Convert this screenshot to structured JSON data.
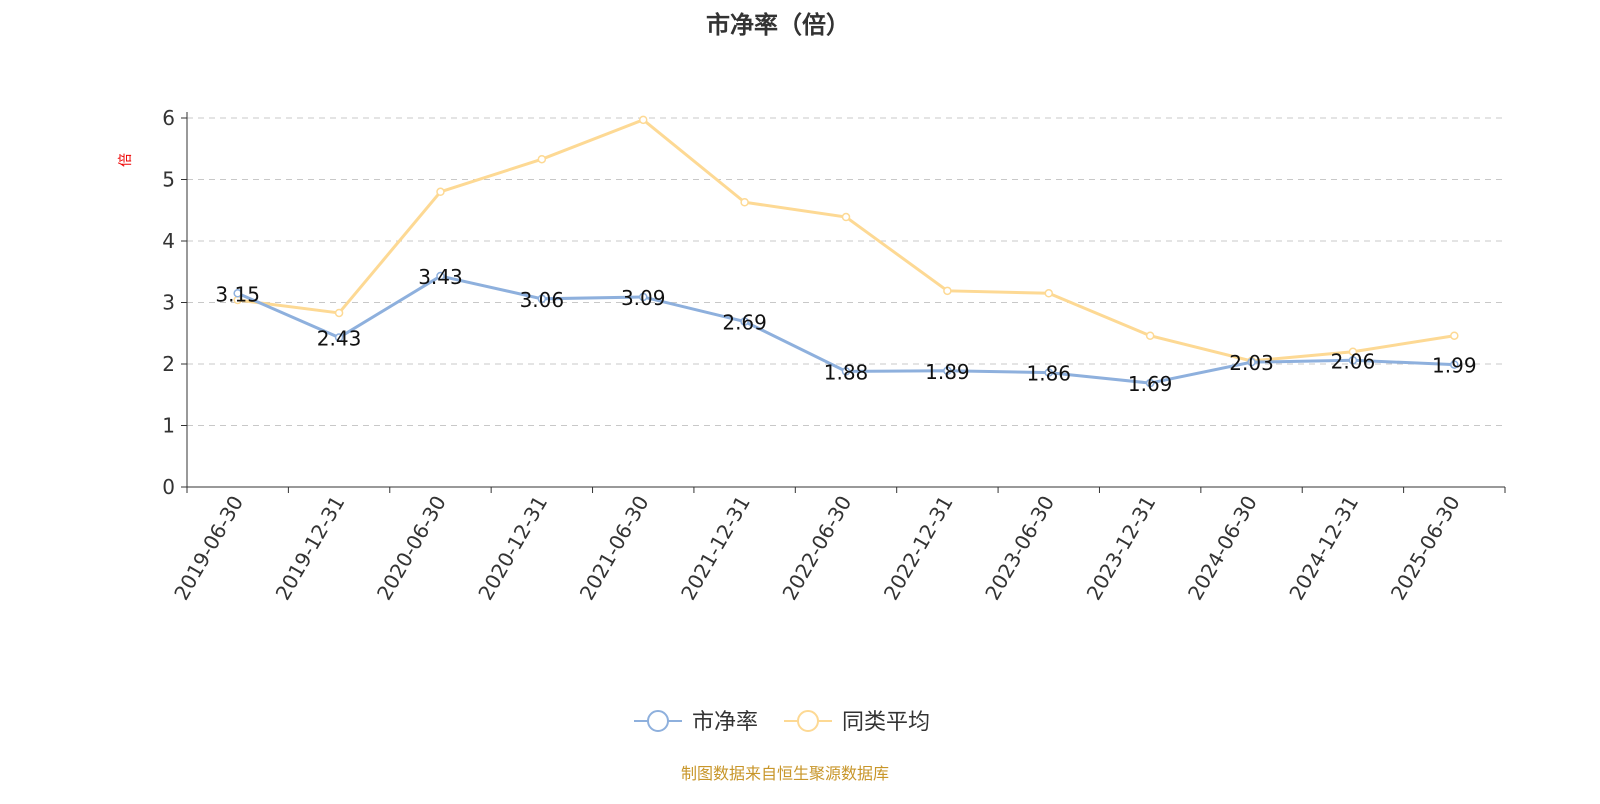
{
  "chart_data": {
    "type": "line",
    "title": "市净率（倍）",
    "ylabel": "倍",
    "xlabel": "",
    "ylim": [
      0,
      6
    ],
    "yticks": [
      0,
      1,
      2,
      3,
      4,
      5,
      6
    ],
    "grid": "horizontal dashed",
    "legend_position": "bottom",
    "categories": [
      "2019-06-30",
      "2019-12-31",
      "2020-06-30",
      "2020-12-31",
      "2021-06-30",
      "2021-12-31",
      "2022-06-30",
      "2022-12-31",
      "2023-06-30",
      "2023-12-31",
      "2024-06-30",
      "2024-12-31",
      "2025-06-30"
    ],
    "series": [
      {
        "name": "市净率",
        "color": "#8eb0dd",
        "show_labels": true,
        "values": [
          3.15,
          2.43,
          3.43,
          3.06,
          3.09,
          2.69,
          1.88,
          1.89,
          1.86,
          1.69,
          2.03,
          2.06,
          1.99
        ]
      },
      {
        "name": "同类平均",
        "color": "#fdd994",
        "show_labels": false,
        "values": [
          3.04,
          2.83,
          4.8,
          5.33,
          5.97,
          4.63,
          4.39,
          3.19,
          3.15,
          2.46,
          2.05,
          2.2,
          2.46
        ]
      }
    ]
  },
  "footer": {
    "source": "制图数据来自恒生聚源数据库",
    "color": "#c8962a"
  }
}
